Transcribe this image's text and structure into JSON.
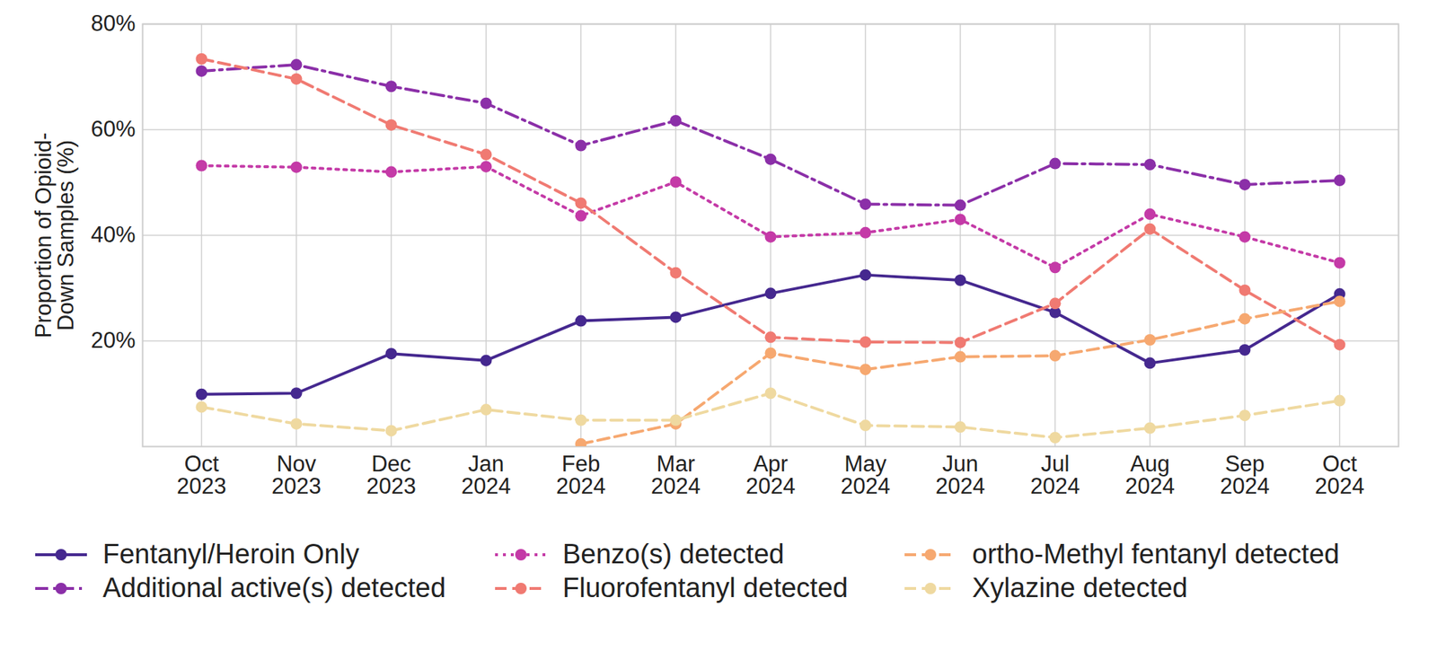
{
  "chart_data": {
    "type": "line",
    "y_label": "Proportion of Opioid-\nDown Samples (%)",
    "categories": [
      "Oct 2023",
      "Nov 2023",
      "Dec 2023",
      "Jan 2024",
      "Feb 2024",
      "Mar 2024",
      "Apr 2024",
      "May 2024",
      "Jun 2024",
      "Jul 2024",
      "Aug 2024",
      "Sep 2024",
      "Oct 2024"
    ],
    "ylim": [
      0,
      80
    ],
    "yticks": [
      {
        "value": 20,
        "label": "20%"
      },
      {
        "value": 40,
        "label": "40%"
      },
      {
        "value": 60,
        "label": "60%"
      },
      {
        "value": 80,
        "label": "80%"
      }
    ],
    "grid": true,
    "legend": "bottom",
    "series": [
      {
        "name": "Fentanyl/Heroin Only",
        "color": "#45288f",
        "line_style": "solid",
        "marker": "o",
        "values": [
          9.9,
          10.1,
          17.6,
          16.3,
          23.8,
          24.5,
          29.0,
          32.5,
          31.5,
          25.4,
          15.8,
          18.3,
          28.9
        ]
      },
      {
        "name": "Additional active(s) detected",
        "color": "#8b2fa8",
        "line_style": "dashdot",
        "marker": "o",
        "values": [
          71.1,
          72.3,
          68.2,
          65.0,
          57.0,
          61.7,
          54.4,
          45.9,
          45.7,
          53.6,
          53.4,
          49.6,
          50.4
        ]
      },
      {
        "name": "Benzo(s) detected",
        "color": "#c43aa7",
        "line_style": "dotted",
        "marker": "o",
        "values": [
          53.2,
          52.9,
          52.0,
          53.0,
          43.7,
          50.1,
          39.7,
          40.5,
          43.0,
          33.9,
          44.0,
          39.7,
          34.8
        ]
      },
      {
        "name": "Fluorofentanyl detected",
        "color": "#f07a72",
        "line_style": "dashed",
        "marker": "o",
        "values": [
          73.4,
          69.6,
          60.9,
          55.3,
          46.1,
          32.9,
          20.7,
          19.8,
          19.7,
          27.1,
          41.2,
          29.6,
          19.3
        ]
      },
      {
        "name": "ortho-Methyl fentanyl detected",
        "color": "#f6a870",
        "line_style": "dashed",
        "marker": "o",
        "values": [
          null,
          null,
          null,
          null,
          0.5,
          4.3,
          17.7,
          14.6,
          17.0,
          17.2,
          20.2,
          24.2,
          27.5
        ]
      },
      {
        "name": "Xylazine detected",
        "color": "#efd9a0",
        "line_style": "dashed",
        "marker": "o",
        "values": [
          7.5,
          4.3,
          3.0,
          7.0,
          5.0,
          5.0,
          10.1,
          4.0,
          3.7,
          1.7,
          3.5,
          5.9,
          8.7
        ]
      }
    ]
  }
}
